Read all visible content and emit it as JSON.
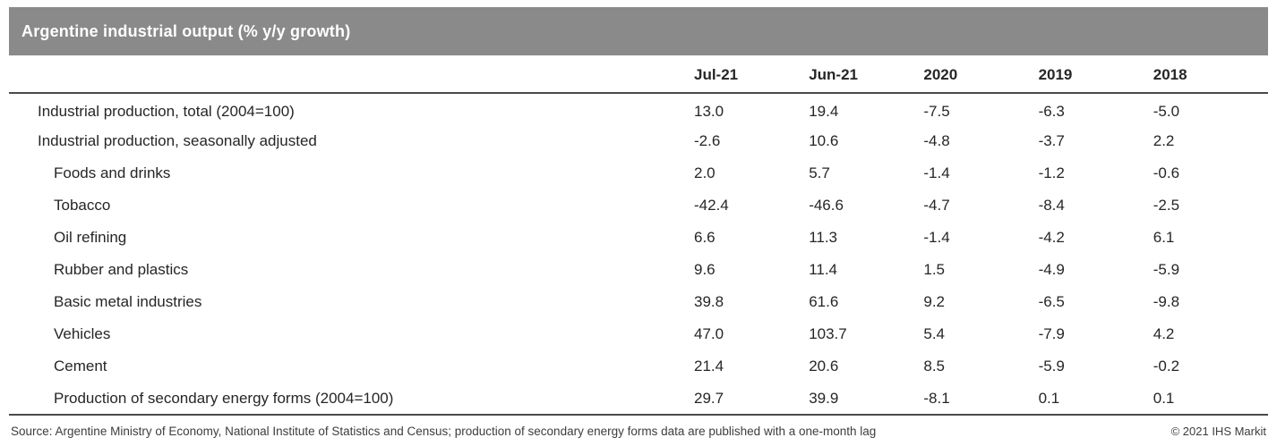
{
  "title": "Argentine industrial output (% y/y growth)",
  "colors": {
    "title_bar": "#8a8a8a",
    "title_text": "#ffffff",
    "body_text": "#262626",
    "rule": "#4a4a4a"
  },
  "chart_data": {
    "type": "table",
    "title": "Argentine industrial output (% y/y growth)",
    "columns": [
      "Jul-21",
      "Jun-21",
      "2020",
      "2019",
      "2018"
    ],
    "rows": [
      {
        "label": "Industrial production, total (2004=100)",
        "indent": 0,
        "values": [
          "13.0",
          "19.4",
          "-7.5",
          "-6.3",
          "-5.0"
        ]
      },
      {
        "label": "Industrial production, seasonally adjusted",
        "indent": 0,
        "values": [
          "-2.6",
          "10.6",
          "-4.8",
          "-3.7",
          "2.2"
        ]
      },
      {
        "label": "Foods and drinks",
        "indent": 1,
        "values": [
          "2.0",
          "5.7",
          "-1.4",
          "-1.2",
          "-0.6"
        ]
      },
      {
        "label": "Tobacco",
        "indent": 1,
        "values": [
          "-42.4",
          "-46.6",
          "-4.7",
          "-8.4",
          "-2.5"
        ]
      },
      {
        "label": "Oil refining",
        "indent": 1,
        "values": [
          "6.6",
          "11.3",
          "-1.4",
          "-4.2",
          "6.1"
        ]
      },
      {
        "label": "Rubber and plastics",
        "indent": 1,
        "values": [
          "9.6",
          "11.4",
          "1.5",
          "-4.9",
          "-5.9"
        ]
      },
      {
        "label": "Basic metal industries",
        "indent": 1,
        "values": [
          "39.8",
          "61.6",
          "9.2",
          "-6.5",
          "-9.8"
        ]
      },
      {
        "label": "Vehicles",
        "indent": 1,
        "values": [
          "47.0",
          "103.7",
          "5.4",
          "-7.9",
          "4.2"
        ]
      },
      {
        "label": "Cement",
        "indent": 1,
        "values": [
          "21.4",
          "20.6",
          "8.5",
          "-5.9",
          "-0.2"
        ]
      },
      {
        "label": "Production of secondary energy forms (2004=100)",
        "indent": 1,
        "values": [
          "29.7",
          "39.9",
          "-8.1",
          "0.1",
          "0.1"
        ]
      }
    ]
  },
  "footer": {
    "source": "Source: Argentine Ministry of Economy, National Institute of Statistics and Census; production of secondary energy forms data are published with a one-month lag",
    "copyright": "© 2021 IHS Markit"
  }
}
